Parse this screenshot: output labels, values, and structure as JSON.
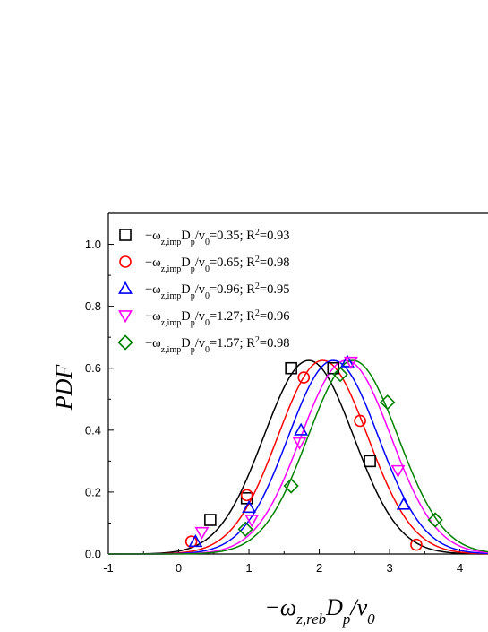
{
  "chart_data": {
    "type": "scatter",
    "title": "",
    "xlabel_parts": {
      "prefix": "−ω",
      "sub": "z,reb",
      "mid": "D",
      "sub2": "p",
      "tail": "/v",
      "sub3": "0"
    },
    "ylabel": "PDF",
    "xlim": [
      -1,
      4.4
    ],
    "ylim": [
      0,
      1.1
    ],
    "x_ticks": [
      -1,
      0,
      1,
      2,
      3,
      4
    ],
    "y_ticks": [
      0.0,
      0.2,
      0.4,
      0.6,
      0.8,
      1.0
    ],
    "x_tick_labels": [
      "-1",
      "0",
      "1",
      "2",
      "3",
      "4"
    ],
    "y_tick_labels": [
      "0.0",
      "0.2",
      "0.4",
      "0.6",
      "0.8",
      "1.0"
    ],
    "legend_position": "top-left",
    "series": [
      {
        "name_parts": {
          "a": "−ω",
          "sub": "z,imp",
          "b": "D",
          "sub2": "p",
          "c": "/v",
          "sub3": "0",
          "d": "=0.35; R",
          "sup": "2",
          "e": "=0.93"
        },
        "marker": "square",
        "color": "#000000",
        "points": [
          [
            0.45,
            0.11
          ],
          [
            0.97,
            0.18
          ],
          [
            1.6,
            0.6
          ],
          [
            2.2,
            0.6
          ],
          [
            2.72,
            0.3
          ]
        ],
        "fit": {
          "mean": 1.85,
          "sigma": 0.64,
          "peak": 0.625
        }
      },
      {
        "name_parts": {
          "a": "−ω",
          "sub": "z,imp",
          "b": "D",
          "sub2": "p",
          "c": "/v",
          "sub3": "0",
          "d": "=0.65; R",
          "sup": "2",
          "e": "=0.98"
        },
        "marker": "circle",
        "color": "#ff0000",
        "points": [
          [
            0.18,
            0.04
          ],
          [
            0.97,
            0.19
          ],
          [
            1.78,
            0.57
          ],
          [
            2.58,
            0.43
          ],
          [
            3.38,
            0.03
          ]
        ],
        "fit": {
          "mean": 2.05,
          "sigma": 0.64,
          "peak": 0.625
        }
      },
      {
        "name_parts": {
          "a": "−ω",
          "sub": "z,imp",
          "b": "D",
          "sub2": "p",
          "c": "/v",
          "sub3": "0",
          "d": "=0.96; R",
          "sup": "2",
          "e": "=0.95"
        },
        "marker": "triangle-up",
        "color": "#0000ff",
        "points": [
          [
            0.24,
            0.04
          ],
          [
            1.0,
            0.15
          ],
          [
            1.74,
            0.4
          ],
          [
            2.4,
            0.62
          ],
          [
            3.2,
            0.16
          ]
        ],
        "fit": {
          "mean": 2.2,
          "sigma": 0.64,
          "peak": 0.625
        }
      },
      {
        "name_parts": {
          "a": "−ω",
          "sub": "z,imp",
          "b": "D",
          "sub2": "p",
          "c": "/v",
          "sub3": "0",
          "d": "=1.27; R",
          "sup": "2",
          "e": "=0.96"
        },
        "marker": "triangle-down",
        "color": "#ff00ff",
        "points": [
          [
            0.33,
            0.07
          ],
          [
            1.04,
            0.11
          ],
          [
            1.72,
            0.36
          ],
          [
            2.45,
            0.62
          ],
          [
            3.12,
            0.27
          ]
        ],
        "fit": {
          "mean": 2.38,
          "sigma": 0.64,
          "peak": 0.625
        }
      },
      {
        "name_parts": {
          "a": "−ω",
          "sub": "z,imp",
          "b": "D",
          "sub2": "p",
          "c": "/v",
          "sub3": "0",
          "d": "=1.57; R",
          "sup": "2",
          "e": "=0.98"
        },
        "marker": "diamond",
        "color": "#008000",
        "points": [
          [
            0.95,
            0.08
          ],
          [
            1.6,
            0.22
          ],
          [
            2.3,
            0.58
          ],
          [
            2.97,
            0.49
          ],
          [
            3.65,
            0.11
          ]
        ],
        "fit": {
          "mean": 2.48,
          "sigma": 0.64,
          "peak": 0.625
        }
      }
    ]
  }
}
